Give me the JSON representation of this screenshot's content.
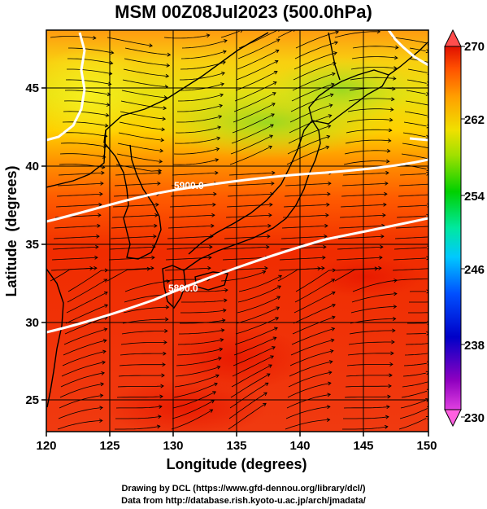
{
  "title": "MSM 00Z08Jul2023 (500.0hPa)",
  "axes": {
    "xlabel": "Longitude (degrees)",
    "ylabel": "Latitude  (degrees)",
    "xlim": [
      120,
      150
    ],
    "ylim": [
      22.4,
      47.6
    ],
    "xticks": [
      "120",
      "125",
      "130",
      "135",
      "140",
      "145",
      "150"
    ],
    "yticks": [
      "25",
      "30",
      "35",
      "40",
      "45"
    ]
  },
  "colorbar": {
    "range": [
      230,
      270
    ],
    "ticks": [
      "230",
      "238",
      "246",
      "254",
      "262",
      "270"
    ],
    "colors": [
      "#e040e0",
      "#8000c0",
      "#0000d0",
      "#0060ff",
      "#00c8ff",
      "#00e8a0",
      "#00d000",
      "#a0e000",
      "#f0e000",
      "#ffa000",
      "#ff5000",
      "#e01000"
    ]
  },
  "contours": {
    "levels": [
      {
        "value": 5900.0,
        "label": "5900.0"
      },
      {
        "value": 5800.0,
        "label": "5800.0"
      }
    ],
    "color": "#ffffff"
  },
  "credits": {
    "line1": "Drawing by DCL (https://www.gfd-dennou.org/library/dcl/)",
    "line2": "Data from http://database.rish.kyoto-u.ac.jp/arch/jmadata/"
  }
}
